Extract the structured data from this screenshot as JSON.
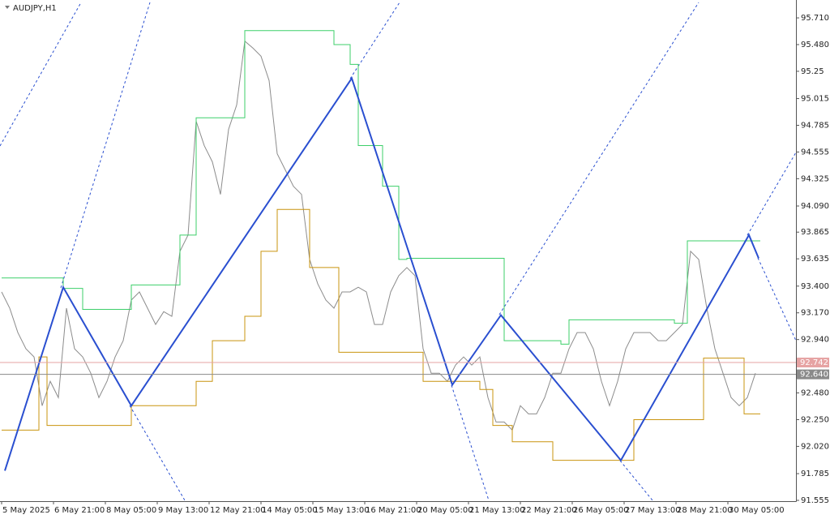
{
  "chart_data": {
    "type": "line",
    "title": "AUDJPY,H1",
    "step": true,
    "xlim": [
      -1,
      490
    ],
    "ylim": [
      91.548,
      95.864
    ],
    "xticks": [
      {
        "value": 0,
        "label": "5 May 2025"
      },
      {
        "value": 32,
        "label": "6 May 21:00"
      },
      {
        "value": 64,
        "label": "8 May 05:00"
      },
      {
        "value": 96,
        "label": "9 May 13:00"
      },
      {
        "value": 128,
        "label": "12 May 21:00"
      },
      {
        "value": 160,
        "label": "14 May 05:00"
      },
      {
        "value": 192,
        "label": "15 May 13:00"
      },
      {
        "value": 224,
        "label": "16 May 21:00"
      },
      {
        "value": 256,
        "label": "20 May 05:00"
      },
      {
        "value": 288,
        "label": "21 May 13:00"
      },
      {
        "value": 320,
        "label": "22 May 21:00"
      },
      {
        "value": 352,
        "label": "26 May 05:00"
      },
      {
        "value": 384,
        "label": "27 May 13:00"
      },
      {
        "value": 416,
        "label": "28 May 21:00"
      },
      {
        "value": 448,
        "label": "30 May 05:00"
      }
    ],
    "yticks": [
      {
        "value": 95.71,
        "label": "95.710"
      },
      {
        "value": 95.48,
        "label": "95.480"
      },
      95.25,
      95.015,
      94.785,
      94.555,
      94.325,
      {
        "value": 94.09,
        "label": "94.090"
      },
      93.865,
      93.635,
      {
        "value": 93.4,
        "label": "93.400"
      },
      {
        "value": 93.17,
        "label": "93.170"
      },
      {
        "value": 92.94,
        "label": "92.940"
      },
      {
        "value": 92.48,
        "label": "92.480"
      },
      {
        "value": 92.25,
        "label": "92.250"
      },
      {
        "value": 92.02,
        "label": "92.020"
      },
      91.785,
      91.555
    ],
    "price_lines": [
      {
        "value": 92.742,
        "label": "92.742",
        "color": "#e6a3a3"
      },
      {
        "value": 92.64,
        "label": "92.640",
        "color": "#8a8a8a"
      }
    ],
    "series": [
      {
        "color": "#8c8c8c",
        "width": 1,
        "x": [
          0,
          5,
          10,
          15,
          20,
          25,
          30,
          35,
          40,
          45,
          50,
          55,
          60,
          65,
          70,
          75,
          80,
          85,
          90,
          95,
          100,
          105,
          110,
          115,
          120,
          125,
          130,
          135,
          140,
          145,
          150,
          155,
          160,
          165,
          170,
          175,
          180,
          185,
          190,
          195,
          200,
          205,
          210,
          215,
          220,
          225,
          230,
          235,
          240,
          245,
          250,
          255,
          260,
          265,
          270,
          275,
          280,
          285,
          290,
          295,
          300,
          305,
          310,
          315,
          320,
          325,
          330,
          335,
          340,
          345,
          350,
          355,
          360,
          365,
          370,
          375,
          380,
          385,
          390,
          395,
          400,
          405,
          410,
          415,
          420,
          425,
          430,
          435,
          440,
          445,
          450,
          455,
          460,
          465
        ],
        "values": [
          93.35,
          93.21,
          93.0,
          92.86,
          92.79,
          92.37,
          92.58,
          92.44,
          93.21,
          92.86,
          92.79,
          92.65,
          92.44,
          92.58,
          92.79,
          92.93,
          93.28,
          93.35,
          93.21,
          93.07,
          93.18,
          93.14,
          93.7,
          93.84,
          94.82,
          94.61,
          94.47,
          94.19,
          94.75,
          94.96,
          95.51,
          95.45,
          95.38,
          95.17,
          94.54,
          94.4,
          94.26,
          94.19,
          93.63,
          93.42,
          93.28,
          93.21,
          93.35,
          93.35,
          93.39,
          93.35,
          93.07,
          93.07,
          93.35,
          93.49,
          93.56,
          93.49,
          92.86,
          92.65,
          92.65,
          92.58,
          92.72,
          92.79,
          92.72,
          92.79,
          92.44,
          92.23,
          92.23,
          92.16,
          92.37,
          92.3,
          92.3,
          92.44,
          92.65,
          92.65,
          92.86,
          93.0,
          93.0,
          92.86,
          92.58,
          92.37,
          92.58,
          92.86,
          93.0,
          93.0,
          93.0,
          92.93,
          92.93,
          93.0,
          93.07,
          93.7,
          93.63,
          93.21,
          92.86,
          92.65,
          92.44,
          92.37,
          92.44,
          92.65
        ]
      },
      {
        "color": "#3dcf6a",
        "width": 1,
        "step": true,
        "x": [
          0,
          35,
          38,
          50,
          78,
          80,
          108,
          110,
          120,
          150,
          200,
          205,
          215,
          220,
          235,
          245,
          250,
          305,
          310,
          345,
          350,
          385,
          415,
          423,
          468
        ],
        "values": [
          93.47,
          93.47,
          93.38,
          93.2,
          93.2,
          93.41,
          93.41,
          93.84,
          94.85,
          95.6,
          95.6,
          95.48,
          95.31,
          94.61,
          94.26,
          93.63,
          93.64,
          93.64,
          92.93,
          92.9,
          93.11,
          93.11,
          93.08,
          93.79,
          93.79
        ]
      },
      {
        "color": "#c9940f",
        "width": 1,
        "step": true,
        "x": [
          0,
          23,
          28,
          78,
          80,
          110,
          120,
          130,
          150,
          160,
          170,
          185,
          190,
          208,
          258,
          260,
          278,
          295,
          303,
          315,
          338,
          340,
          388,
          390,
          428,
          433,
          445,
          458,
          468
        ],
        "values": [
          92.16,
          92.79,
          92.2,
          92.2,
          92.37,
          92.37,
          92.58,
          92.93,
          93.14,
          93.7,
          94.06,
          94.06,
          93.56,
          92.83,
          92.83,
          92.58,
          92.58,
          92.51,
          92.2,
          92.06,
          92.06,
          91.9,
          91.9,
          92.25,
          92.25,
          92.78,
          92.78,
          92.3,
          92.3
        ]
      },
      {
        "color": "#2a4fd0",
        "width": 2,
        "x": [
          2,
          38,
          80,
          216,
          278,
          308,
          382,
          461,
          467
        ],
        "values": [
          91.81,
          93.39,
          92.37,
          95.19,
          92.55,
          93.15,
          91.9,
          93.84,
          93.64
        ]
      }
    ]
  }
}
